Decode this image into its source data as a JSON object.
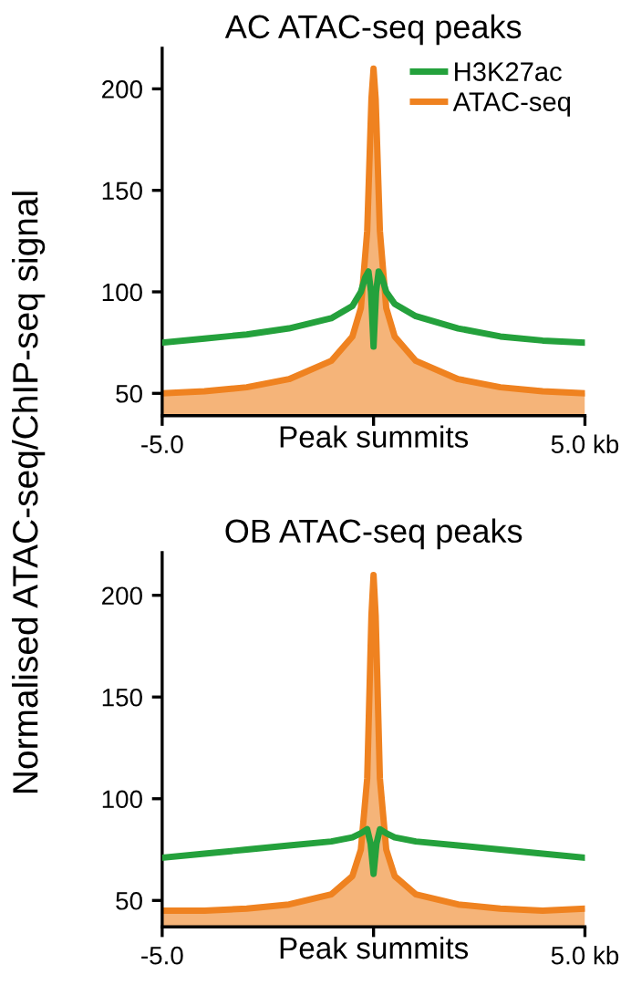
{
  "chart_data": [
    {
      "type": "line",
      "title": "AC ATAC-seq peaks",
      "xlabel": "Peak summits",
      "ylabel": "Normalised ATAC-seq/ChIP-seq signal",
      "xlim": [
        -5,
        5
      ],
      "xticks": [
        {
          "value": -5,
          "label": "-5.0"
        },
        {
          "value": 0,
          "label": null
        },
        {
          "value": 5,
          "label": "5.0 kb"
        }
      ],
      "ylim": [
        39,
        220
      ],
      "yticks": [
        50,
        100,
        150,
        200
      ],
      "grid": false,
      "legend": "top right",
      "series": [
        {
          "name": "H3K27ac",
          "color": "#24a13c",
          "x": [
            -5,
            -4,
            -3,
            -2,
            -1,
            -0.5,
            -0.3,
            -0.2,
            -0.12,
            -0.06,
            0,
            0.06,
            0.12,
            0.2,
            0.3,
            0.5,
            1,
            2,
            3,
            4,
            5
          ],
          "values": [
            75,
            77,
            79,
            82,
            87,
            93,
            100,
            107,
            110,
            100,
            73,
            100,
            110,
            107,
            100,
            94,
            88,
            82,
            78,
            76,
            75
          ]
        },
        {
          "name": "ATAC-seq",
          "type": "area",
          "color": "#ef8220",
          "x": [
            -5,
            -4,
            -3,
            -2,
            -1,
            -0.5,
            -0.3,
            -0.15,
            -0.05,
            0,
            0.05,
            0.15,
            0.3,
            0.5,
            1,
            2,
            3,
            4,
            5
          ],
          "values": [
            50,
            51,
            53,
            57,
            66,
            78,
            92,
            130,
            195,
            210,
            195,
            130,
            92,
            78,
            66,
            57,
            53,
            51,
            50
          ]
        }
      ]
    },
    {
      "type": "line",
      "title": "OB ATAC-seq peaks",
      "xlabel": "Peak summits",
      "xlim": [
        -5,
        5
      ],
      "xticks": [
        {
          "value": -5,
          "label": "-5.0"
        },
        {
          "value": 0,
          "label": null
        },
        {
          "value": 5,
          "label": "5.0 kb"
        }
      ],
      "ylim": [
        37,
        221
      ],
      "yticks": [
        50,
        100,
        150,
        200
      ],
      "grid": false,
      "series": [
        {
          "color": "#24a13c",
          "x": [
            -5,
            -4,
            -3,
            -2,
            -1,
            -0.5,
            -0.3,
            -0.15,
            -0.07,
            0,
            0.07,
            0.15,
            0.3,
            0.5,
            1,
            2,
            3,
            4,
            5
          ],
          "values": [
            71,
            73,
            75,
            77,
            79,
            81,
            83,
            85,
            78,
            63,
            78,
            85,
            83,
            81,
            79,
            77,
            75,
            73,
            71
          ]
        },
        {
          "type": "area",
          "color": "#ef8220",
          "x": [
            -5,
            -4,
            -3,
            -2,
            -1,
            -0.5,
            -0.3,
            -0.15,
            -0.05,
            0,
            0.05,
            0.15,
            0.3,
            0.5,
            1,
            2,
            3,
            4,
            5
          ],
          "values": [
            45,
            45,
            46,
            48,
            53,
            62,
            75,
            110,
            190,
            210,
            190,
            110,
            75,
            62,
            53,
            48,
            46,
            45,
            46
          ]
        }
      ]
    }
  ]
}
